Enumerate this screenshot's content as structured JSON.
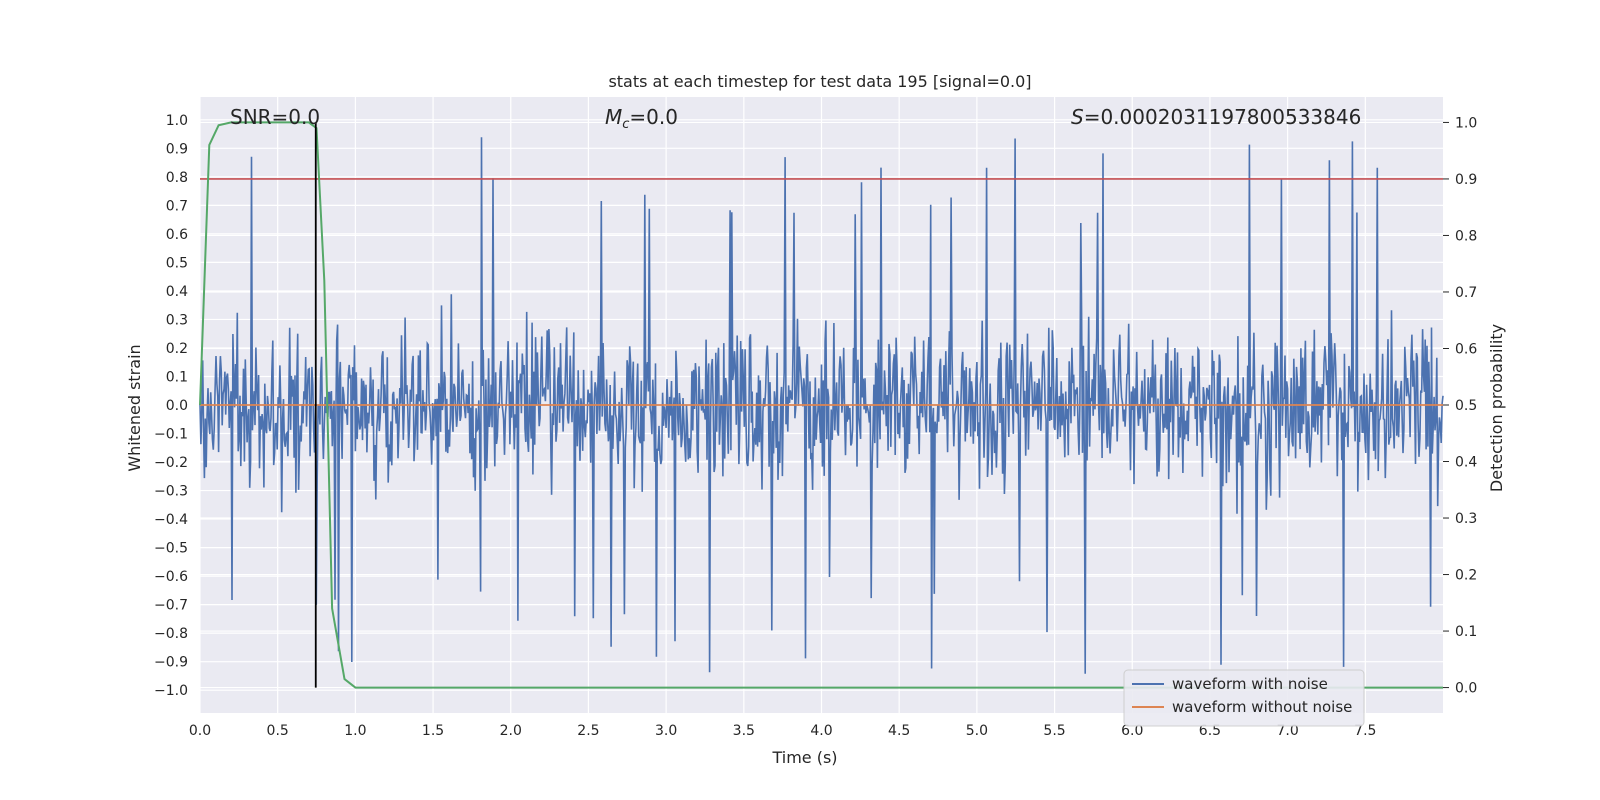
{
  "chart_data": {
    "type": "line",
    "title": "stats at each timestep for test data 195 [signal=0.0]",
    "xlabel": "Time (s)",
    "ylabel": "Whitened strain",
    "ylabel_right": "Detection probability",
    "xlim": [
      0.0,
      8.0
    ],
    "ylim": [
      -1.08,
      1.08
    ],
    "ylim_right": [
      -0.045,
      1.045
    ],
    "x_ticks": [
      "0.0",
      "0.5",
      "1.0",
      "1.5",
      "2.0",
      "2.5",
      "3.0",
      "3.5",
      "4.0",
      "4.5",
      "5.0",
      "5.5",
      "6.0",
      "6.5",
      "7.0",
      "7.5"
    ],
    "y_ticks": [
      "1.0",
      "0.9",
      "0.8",
      "0.7",
      "0.6",
      "0.5",
      "0.4",
      "0.3",
      "0.2",
      "0.1",
      "0.0",
      "-0.1",
      "-0.2",
      "-0.3",
      "-0.4",
      "-0.5",
      "-0.6",
      "-0.7",
      "-0.8",
      "-0.9",
      "-1.0"
    ],
    "y_right_ticks": [
      "1.0",
      "0.9",
      "0.8",
      "0.7",
      "0.6",
      "0.5",
      "0.4",
      "0.3",
      "0.2",
      "0.1",
      "0.0"
    ],
    "annotations": {
      "snr": "SNR=0.0",
      "mc_symbol": "M",
      "mc_sub": "c",
      "mc_value": "=0.0",
      "s_symbol": "S",
      "s_value": "=0.0002031197800533846"
    },
    "legend": {
      "noise": "waveform with noise",
      "clean": "waveform without noise"
    },
    "series": [
      {
        "name": "waveform with noise",
        "axis": "left",
        "color": "#4c72b0",
        "note": "dense noise, amplitude roughly -1.0..1.0",
        "n_points": 1400,
        "amplitude_envelope": 1.0
      },
      {
        "name": "waveform without noise",
        "axis": "left",
        "color": "#dd8452",
        "x": [
          0.0,
          8.0
        ],
        "y": [
          0.0,
          0.0
        ]
      },
      {
        "name": "detection probability",
        "axis": "right",
        "color": "#55a868",
        "x": [
          0.0,
          0.06,
          0.12,
          0.2,
          0.3,
          0.4,
          0.5,
          0.6,
          0.7,
          0.75,
          0.8,
          0.85,
          0.93,
          1.0,
          1.5,
          8.0
        ],
        "y": [
          0.5,
          0.96,
          0.995,
          1.0,
          1.0,
          1.0,
          1.0,
          1.0,
          1.0,
          0.99,
          0.72,
          0.14,
          0.015,
          0.0,
          0.0,
          0.0
        ]
      }
    ],
    "threshold_line": {
      "axis": "right",
      "value": 0.9,
      "color": "#c44e52"
    },
    "vertical_marker": {
      "x": 0.745,
      "y_from": 0.0,
      "y_to": 1.0,
      "axis": "right",
      "color": "#000000"
    },
    "grid": true,
    "legend_position": "lower-right"
  }
}
